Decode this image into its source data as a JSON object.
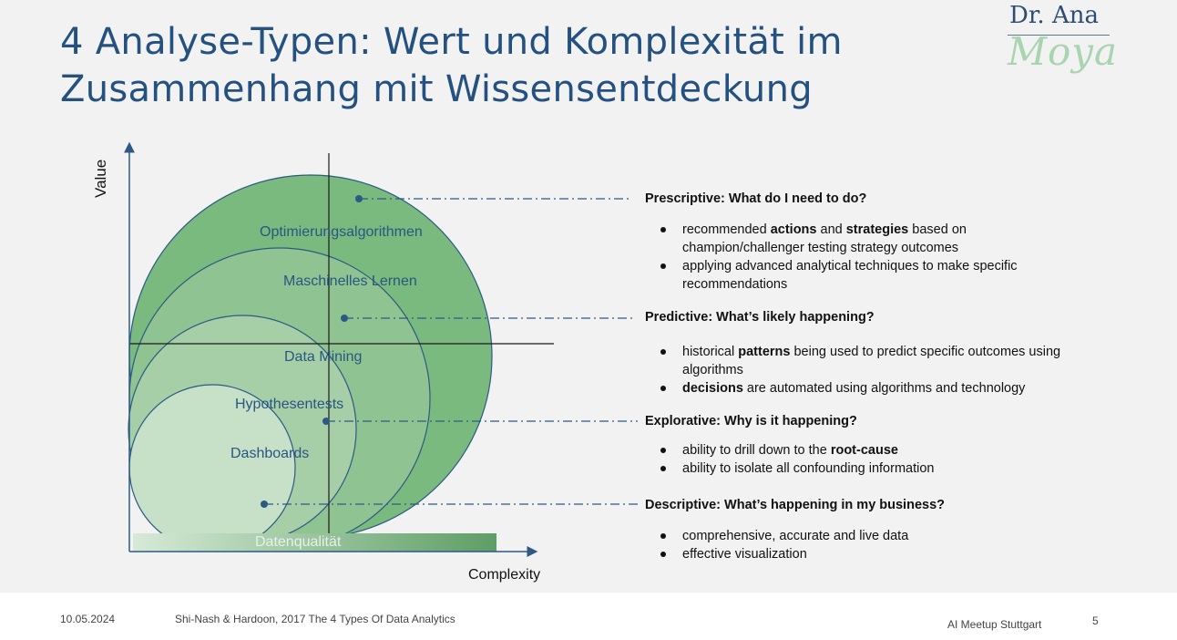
{
  "title": "4 Analyse-Typen: Wert und Komplexität im Zusammenhang mit Wissensentdeckung",
  "logo": {
    "top": "Dr. Ana",
    "script": "Moya"
  },
  "diagram": {
    "y_axis": "Value",
    "x_axis": "Complexity",
    "circles": [
      "Optimierungsalgorithmen",
      "Maschinelles Lernen",
      "Data Mining",
      "Hypothesentests",
      "Dashboards"
    ],
    "bar": "Datenqualität",
    "colors": {
      "outer": "#7aba7e",
      "second": "#8fc492",
      "third": "#a6cfa7",
      "inner": "#c6e1c7",
      "stroke": "#2d5a85",
      "title": "#24517f"
    }
  },
  "sections": [
    {
      "heading": "Prescriptive: What do I need to do?",
      "bullets": [
        {
          "parts": [
            {
              "t": "recommended "
            },
            {
              "t": "actions",
              "b": true
            },
            {
              "t": " and "
            },
            {
              "t": "strategies",
              "b": true
            },
            {
              "t": " based on champion/challenger testing strategy outcomes"
            }
          ]
        },
        {
          "parts": [
            {
              "t": "applying advanced analytical techniques to make specific recommendations"
            }
          ]
        }
      ]
    },
    {
      "heading": "Predictive: What’s likely happening?",
      "bullets": [
        {
          "parts": [
            {
              "t": "historical "
            },
            {
              "t": "patterns",
              "b": true
            },
            {
              "t": " being used to predict specific outcomes using algorithms"
            }
          ]
        },
        {
          "parts": [
            {
              "t": "decisions",
              "b": true
            },
            {
              "t": " are automated using algorithms and technology"
            }
          ]
        }
      ]
    },
    {
      "heading": "Explorative: Why is it happening?",
      "bullets": [
        {
          "parts": [
            {
              "t": "ability to drill down to the "
            },
            {
              "t": "root-cause",
              "b": true
            }
          ]
        },
        {
          "parts": [
            {
              "t": "ability to isolate all confounding information"
            }
          ]
        }
      ]
    },
    {
      "heading": "Descriptive: What’s happening in my business?",
      "bullets": [
        {
          "parts": [
            {
              "t": "comprehensive, accurate and live data"
            }
          ]
        },
        {
          "parts": [
            {
              "t": "effective visualization"
            }
          ]
        }
      ]
    }
  ],
  "footer": {
    "date": "10.05.2024",
    "source": "Shi-Nash & Hardoon, 2017 The 4 Types Of Data Analytics",
    "event": "AI Meetup Stuttgart",
    "page": "5"
  }
}
